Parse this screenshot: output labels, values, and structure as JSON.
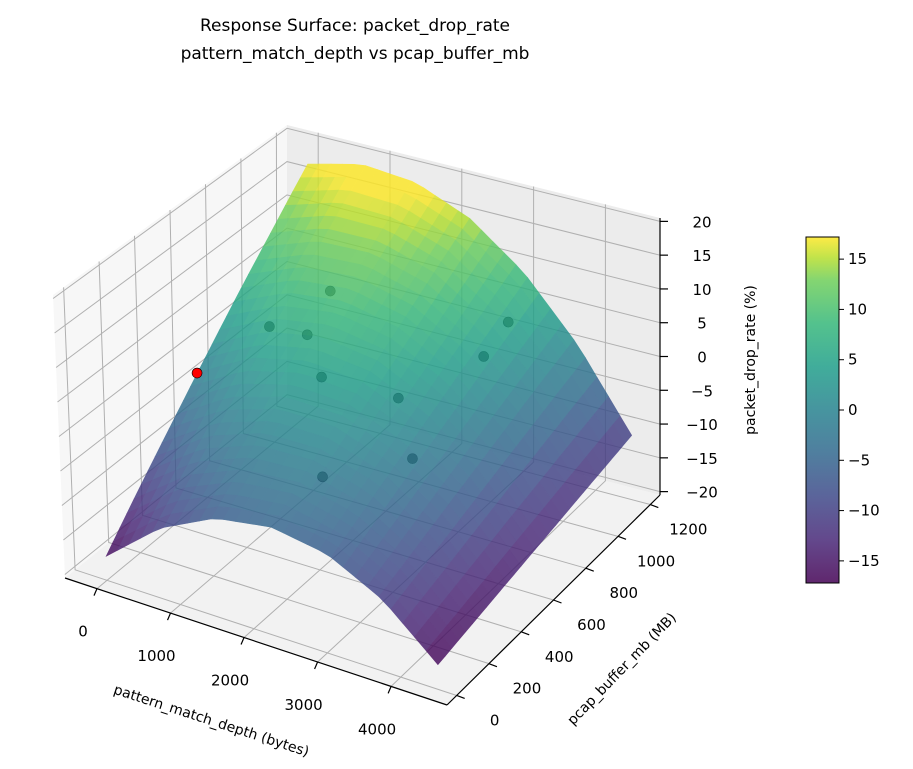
{
  "chart_data": {
    "type": "surface3d",
    "title": "Response Surface: packet_drop_rate",
    "subtitle": "pattern_match_depth vs pcap_buffer_mb",
    "xlabel": "pattern_match_depth (bytes)",
    "ylabel": "pcap_buffer_mb (MB)",
    "zlabel": "packet_drop_rate (%)",
    "xlim": [
      -435,
      4760
    ],
    "ylim": [
      -60,
      1260
    ],
    "zlim": [
      -20.5,
      20.5
    ],
    "xticks": [
      0,
      1000,
      2000,
      3000,
      4000
    ],
    "yticks": [
      0,
      200,
      400,
      600,
      800,
      1000,
      1200
    ],
    "zticks": [
      -20,
      -15,
      -10,
      -5,
      0,
      5,
      10,
      15,
      20
    ],
    "grid": true,
    "colormap": "viridis",
    "surface": {
      "x": [
        0,
        750,
        1500,
        2250,
        3000,
        3750,
        4500
      ],
      "y": [
        0,
        200,
        400,
        600,
        800,
        1000,
        1200
      ],
      "z": [
        [
          -17.0,
          -10.3,
          -6.3,
          -5.0,
          -6.3,
          -10.3,
          -17.0
        ],
        [
          -11.3,
          -5.4,
          -2.2,
          -1.7,
          -3.8,
          -8.6,
          -16.0
        ],
        [
          -5.7,
          -0.6,
          1.9,
          1.7,
          -1.2,
          -6.8,
          -15.0
        ],
        [
          0.0,
          4.3,
          6.0,
          5.0,
          1.3,
          -5.0,
          -14.0
        ],
        [
          5.7,
          9.2,
          10.1,
          8.3,
          3.9,
          -3.2,
          -13.0
        ],
        [
          11.3,
          14.1,
          14.2,
          11.7,
          6.4,
          -1.4,
          -12.0
        ],
        [
          17.0,
          19.0,
          18.3,
          15.0,
          9.0,
          0.3,
          -11.0
        ]
      ]
    },
    "points": [
      {
        "x": 1280,
        "y": 789,
        "z": 10,
        "color": "#404040"
      },
      {
        "x": 680,
        "y": 688,
        "z": 5,
        "color": "#404040"
      },
      {
        "x": 994,
        "y": 774,
        "z": 3,
        "color": "#404040"
      },
      {
        "x": 1409,
        "y": 678,
        "z": 0,
        "color": "#404040"
      },
      {
        "x": 2286,
        "y": 753,
        "z": -2,
        "color": "#404040"
      },
      {
        "x": 1789,
        "y": 513,
        "z": -10,
        "color": "#404040"
      },
      {
        "x": 2660,
        "y": 672,
        "z": -8,
        "color": "#404040"
      },
      {
        "x": 3089,
        "y": 916,
        "z": 3,
        "color": "#404040"
      },
      {
        "x": 3184,
        "y": 1024,
        "z": 6,
        "color": "#404040"
      },
      {
        "x": 540,
        "y": 325,
        "z": 5,
        "color": "#ff0000"
      }
    ],
    "colorbar": {
      "range": [
        -17.2,
        17.2
      ],
      "ticks": [
        -15,
        -10,
        -5,
        0,
        5,
        10,
        15
      ]
    }
  }
}
